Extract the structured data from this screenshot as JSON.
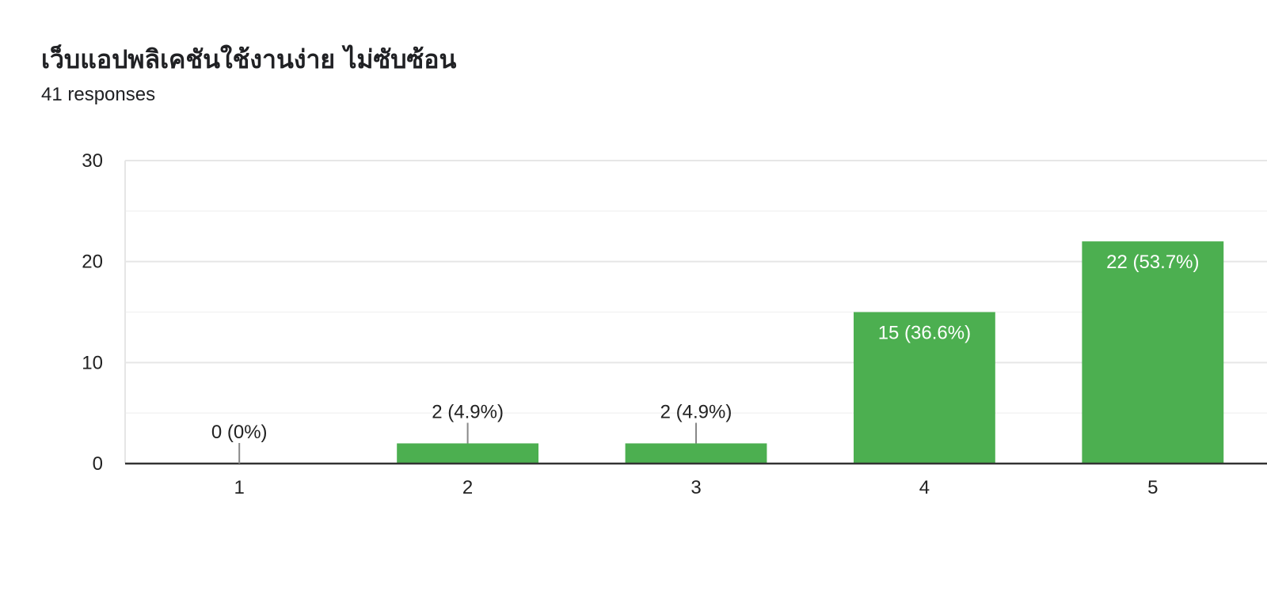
{
  "header": {
    "title": "เว็บแอปพลิเคชันใช้งานง่าย ไม่ซับซ้อน",
    "subtitle": "41 responses"
  },
  "chart_data": {
    "type": "bar",
    "title": "เว็บแอปพลิเคชันใช้งานง่าย ไม่ซับซ้อน",
    "categories": [
      "1",
      "2",
      "3",
      "4",
      "5"
    ],
    "values": [
      0,
      2,
      2,
      15,
      22
    ],
    "data_labels": [
      "0 (0%)",
      "2 (4.9%)",
      "2 (4.9%)",
      "15 (36.6%)",
      "22 (53.7%)"
    ],
    "xlabel": "",
    "ylabel": "",
    "ylim": [
      0,
      30
    ],
    "yticks": [
      0,
      10,
      20,
      30
    ],
    "grid": true,
    "legend": "none",
    "colors": {
      "bar": "#4caf50",
      "axis": "#333333",
      "grid": "#e6e6e6",
      "minor_grid": "#f3f3f3"
    }
  }
}
